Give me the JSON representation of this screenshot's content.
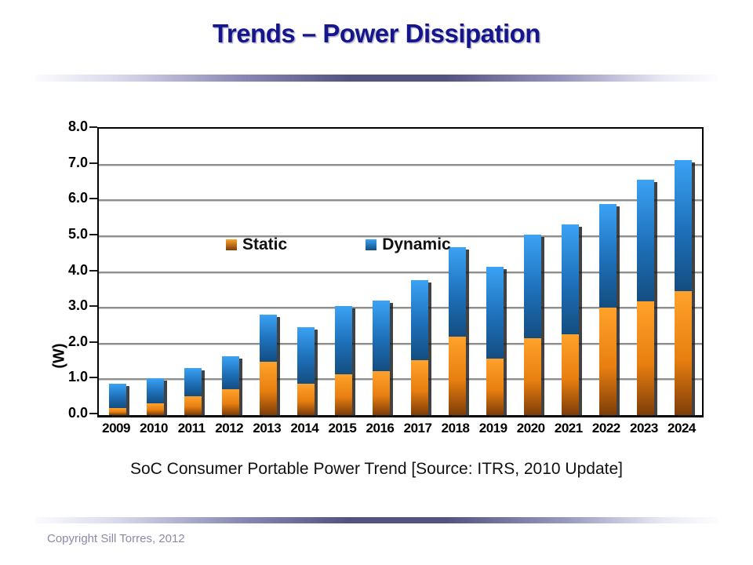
{
  "slide": {
    "title": "Trends – Power Dissipation",
    "caption": "SoC Consumer Portable Power Trend [Source: ITRS, 2010 Update]",
    "copyright": "Copyright Sill Torres, 2012"
  },
  "chart_data": {
    "type": "bar",
    "stacked": true,
    "title": "",
    "xlabel": "",
    "ylabel": "(W)",
    "ylim": [
      0,
      8
    ],
    "ytick_step": 1,
    "yticks": [
      "0.0",
      "1.0",
      "2.0",
      "3.0",
      "4.0",
      "5.0",
      "6.0",
      "7.0",
      "8.0"
    ],
    "grid": true,
    "legend_position": "inside-top-left",
    "categories": [
      "2009",
      "2010",
      "2011",
      "2012",
      "2013",
      "2014",
      "2015",
      "2016",
      "2017",
      "2018",
      "2019",
      "2020",
      "2021",
      "2022",
      "2023",
      "2024"
    ],
    "series": [
      {
        "name": "Static",
        "values": [
          0.2,
          0.32,
          0.53,
          0.72,
          1.5,
          0.88,
          1.13,
          1.22,
          1.53,
          2.2,
          1.57,
          2.15,
          2.25,
          3.0,
          3.18,
          3.47
        ],
        "gradient": [
          "#ffa22b",
          "#e87f10",
          "#7e3d08"
        ]
      },
      {
        "name": "Dynamic",
        "values": [
          0.68,
          0.7,
          0.79,
          0.93,
          1.3,
          1.57,
          1.92,
          1.98,
          2.25,
          2.5,
          2.58,
          2.9,
          3.07,
          2.9,
          3.4,
          3.66
        ],
        "gradient": [
          "#3ba2f5",
          "#1d6fb8",
          "#144d80"
        ]
      }
    ],
    "totals": [
      0.88,
      1.02,
      1.32,
      1.65,
      2.8,
      2.45,
      3.05,
      3.2,
      3.78,
      4.7,
      4.15,
      5.05,
      5.32,
      5.9,
      6.58,
      7.13
    ]
  },
  "colors": {
    "title": "#15158c",
    "divider_mid": "#53537f",
    "divider_edge": "#fbfbfe",
    "gridline": "#8f8f8f",
    "axis": "#000000",
    "caption_text": "#111111",
    "copyright_text": "#8a8aa8"
  }
}
